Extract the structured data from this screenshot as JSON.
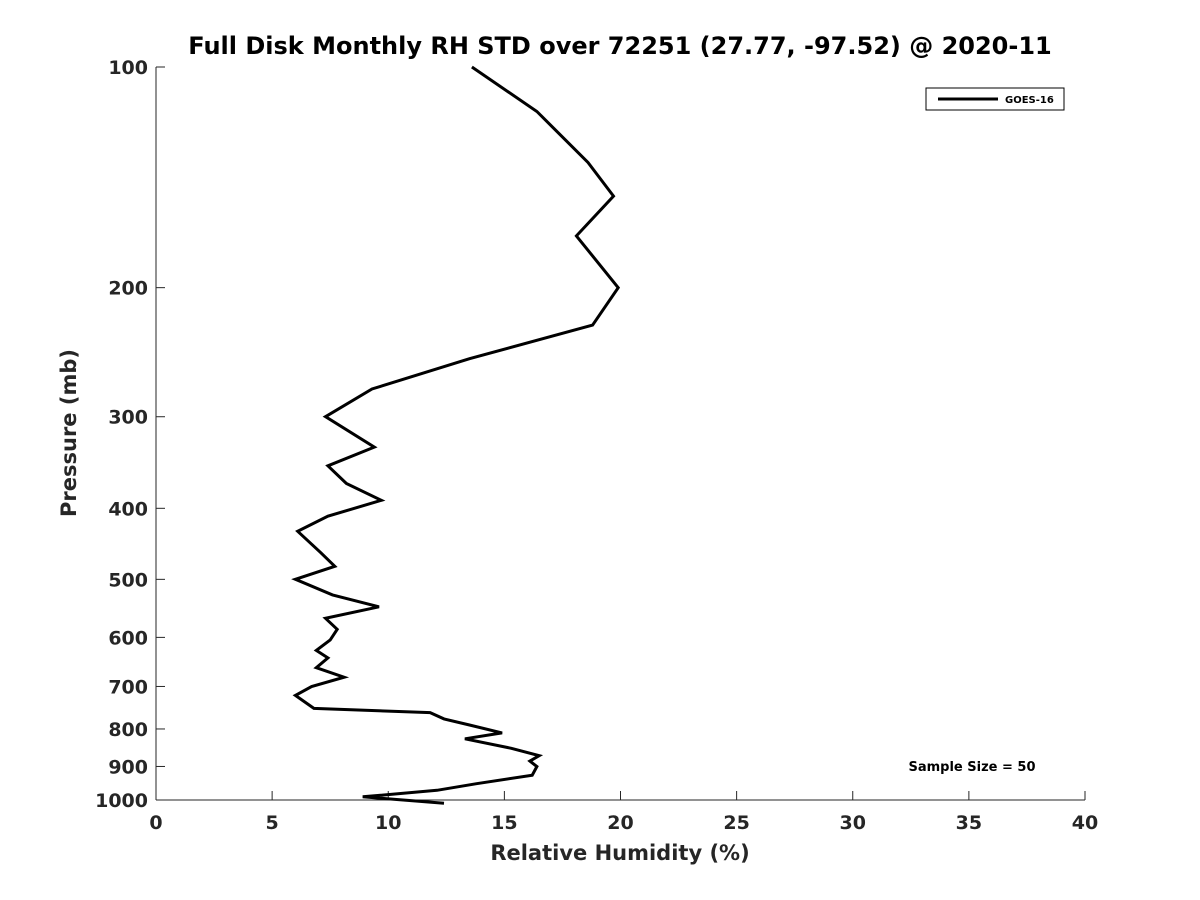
{
  "chart_data": {
    "type": "line",
    "title": "Full Disk Monthly RH STD over 72251 (27.77, -97.52) @ 2020-11",
    "xlabel": "Relative Humidity (%)",
    "ylabel": "Pressure (mb)",
    "xlim": [
      0,
      40
    ],
    "ylim": [
      100,
      1000
    ],
    "yscale": "log",
    "yreversed": true,
    "grid": false,
    "x_ticks": [
      0,
      5,
      10,
      15,
      20,
      25,
      30,
      35,
      40
    ],
    "x_tick_labels": [
      "0",
      "5",
      "10",
      "15",
      "20",
      "25",
      "30",
      "35",
      "40"
    ],
    "y_ticks": [
      100,
      200,
      300,
      400,
      500,
      600,
      700,
      800,
      900,
      1000
    ],
    "y_tick_labels": [
      "100",
      "200",
      "300",
      "400",
      "500",
      "600",
      "700",
      "800",
      "900",
      "1000"
    ],
    "legend": {
      "position": "top-right",
      "entries": [
        "GOES-16"
      ]
    },
    "annotation": "Sample Size = 50",
    "series": [
      {
        "name": "GOES-16",
        "color": "#000000",
        "points": [
          [
            13.6,
            100
          ],
          [
            16.4,
            115
          ],
          [
            18.6,
            135
          ],
          [
            19.7,
            150
          ],
          [
            18.1,
            170
          ],
          [
            19.9,
            200
          ],
          [
            18.8,
            225
          ],
          [
            13.5,
            250
          ],
          [
            9.3,
            275
          ],
          [
            7.3,
            300
          ],
          [
            9.4,
            330
          ],
          [
            7.4,
            350
          ],
          [
            8.2,
            370
          ],
          [
            9.7,
            390
          ],
          [
            7.4,
            410
          ],
          [
            6.1,
            430
          ],
          [
            7.1,
            460
          ],
          [
            7.7,
            480
          ],
          [
            6.0,
            500
          ],
          [
            7.6,
            525
          ],
          [
            9.6,
            545
          ],
          [
            7.3,
            565
          ],
          [
            7.8,
            585
          ],
          [
            7.5,
            605
          ],
          [
            6.9,
            625
          ],
          [
            7.4,
            640
          ],
          [
            6.9,
            660
          ],
          [
            8.1,
            680
          ],
          [
            6.7,
            700
          ],
          [
            6.0,
            720
          ],
          [
            6.8,
            750
          ],
          [
            11.8,
            760
          ],
          [
            12.4,
            775
          ],
          [
            13.5,
            790
          ],
          [
            14.9,
            810
          ],
          [
            13.3,
            825
          ],
          [
            15.3,
            850
          ],
          [
            16.5,
            870
          ],
          [
            16.1,
            885
          ],
          [
            16.4,
            900
          ],
          [
            16.2,
            925
          ],
          [
            13.8,
            950
          ],
          [
            12.1,
            970
          ],
          [
            8.9,
            990
          ],
          [
            12.4,
            1010
          ]
        ]
      }
    ]
  }
}
